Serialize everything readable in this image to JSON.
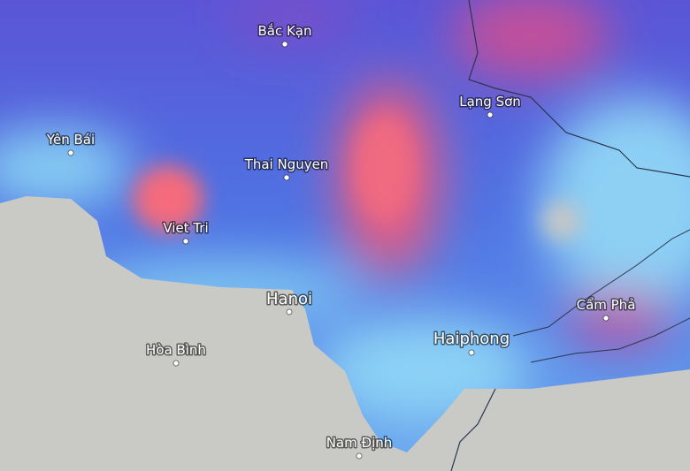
{
  "places": [
    {
      "name": "Bắc Kạn"
    },
    {
      "name": "Lạng Sơn"
    },
    {
      "name": "Yên Bái"
    },
    {
      "name": "Thai Nguyen"
    },
    {
      "name": "Viet Tri"
    },
    {
      "name": "Hanoi"
    },
    {
      "name": "Cẩm Phả"
    },
    {
      "name": "Haiphong"
    },
    {
      "name": "Hòa Bình"
    },
    {
      "name": "Nam Định"
    }
  ]
}
